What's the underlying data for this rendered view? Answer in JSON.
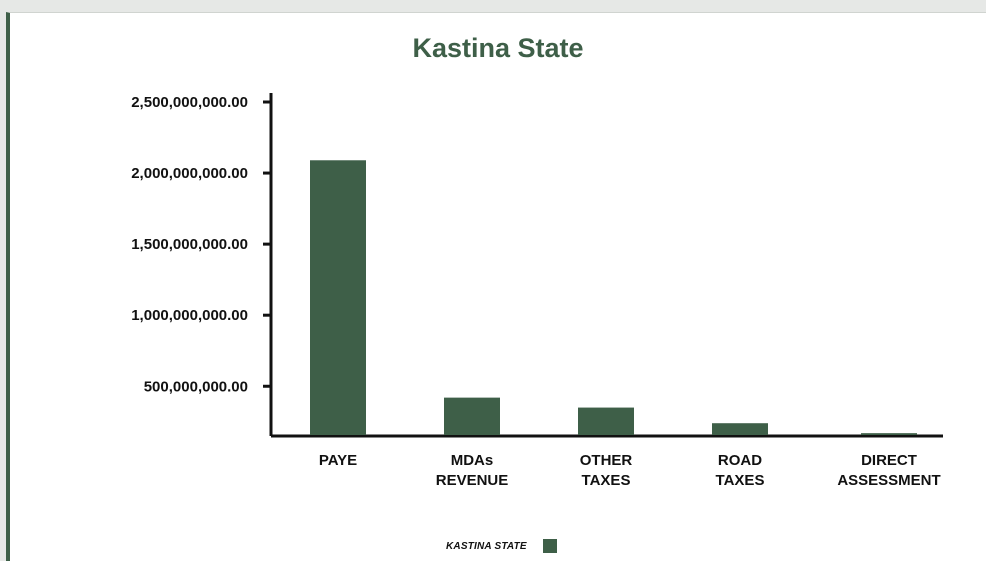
{
  "chart_data": {
    "type": "bar",
    "title": "Kastina State",
    "xlabel": "",
    "ylabel": "",
    "categories": [
      [
        "PAYE"
      ],
      [
        "MDAs",
        "REVENUE"
      ],
      [
        "OTHER",
        "TAXES"
      ],
      [
        "ROAD",
        "TAXES"
      ],
      [
        "DIRECT",
        "ASSESSMENT"
      ]
    ],
    "series": [
      {
        "name": "KASTINA STATE",
        "color": "#3e5f48",
        "values": [
          2090000000,
          420000000,
          350000000,
          240000000,
          170000000
        ]
      }
    ],
    "y_ticks": [
      500000000,
      1000000000,
      1500000000,
      2000000000,
      2500000000
    ],
    "y_tick_labels": [
      "500,000,000.00",
      "1,000,000,000.00",
      "1,500,000,000.00",
      "2,000,000,000.00",
      "2,500,000,000.00"
    ],
    "ylim": [
      150000000,
      2500000000
    ],
    "grid": false,
    "legend_position": "bottom"
  }
}
